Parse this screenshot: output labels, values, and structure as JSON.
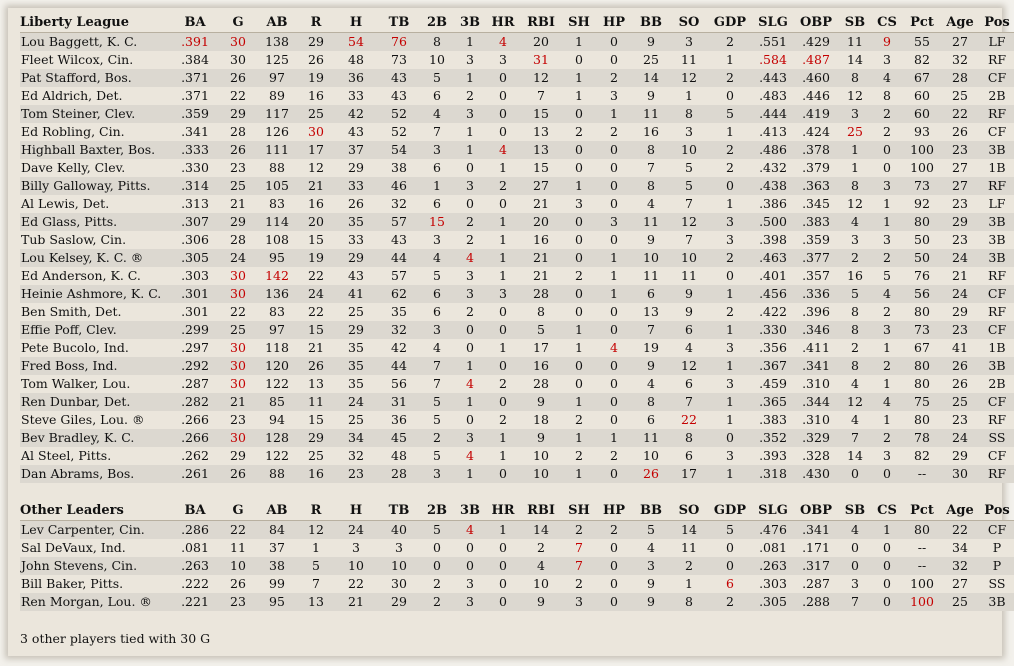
{
  "columns": [
    "BA",
    "G",
    "AB",
    "R",
    "H",
    "TB",
    "2B",
    "3B",
    "HR",
    "RBI",
    "SH",
    "HP",
    "BB",
    "SO",
    "GDP",
    "SLG",
    "OBP",
    "SB",
    "CS",
    "Pct",
    "Age",
    "Pos"
  ],
  "main": {
    "title": "Liberty League",
    "rows": [
      {
        "name": "Lou Baggett, K. C.",
        "stats": [
          ".391",
          "30",
          "138",
          "29",
          "54",
          "76",
          "8",
          "1",
          "4",
          "20",
          "1",
          "0",
          "9",
          "3",
          "2",
          ".551",
          ".429",
          "11",
          "9",
          "55",
          "27",
          "LF"
        ],
        "red": [
          0,
          1,
          4,
          5,
          8,
          18
        ]
      },
      {
        "name": "Fleet Wilcox, Cin.",
        "stats": [
          ".384",
          "30",
          "125",
          "26",
          "48",
          "73",
          "10",
          "3",
          "3",
          "31",
          "0",
          "0",
          "25",
          "11",
          "1",
          ".584",
          ".487",
          "14",
          "3",
          "82",
          "32",
          "RF"
        ],
        "red": [
          9,
          15,
          16
        ]
      },
      {
        "name": "Pat Stafford, Bos.",
        "stats": [
          ".371",
          "26",
          "97",
          "19",
          "36",
          "43",
          "5",
          "1",
          "0",
          "12",
          "1",
          "2",
          "14",
          "12",
          "2",
          ".443",
          ".460",
          "8",
          "4",
          "67",
          "28",
          "CF"
        ],
        "red": []
      },
      {
        "name": "Ed Aldrich, Det.",
        "stats": [
          ".371",
          "22",
          "89",
          "16",
          "33",
          "43",
          "6",
          "2",
          "0",
          "7",
          "1",
          "3",
          "9",
          "1",
          "0",
          ".483",
          ".446",
          "12",
          "8",
          "60",
          "25",
          "2B"
        ],
        "red": []
      },
      {
        "name": "Tom Steiner, Clev.",
        "stats": [
          ".359",
          "29",
          "117",
          "25",
          "42",
          "52",
          "4",
          "3",
          "0",
          "15",
          "0",
          "1",
          "11",
          "8",
          "5",
          ".444",
          ".419",
          "3",
          "2",
          "60",
          "22",
          "RF"
        ],
        "red": []
      },
      {
        "name": "Ed Robling, Cin.",
        "stats": [
          ".341",
          "28",
          "126",
          "30",
          "43",
          "52",
          "7",
          "1",
          "0",
          "13",
          "2",
          "2",
          "16",
          "3",
          "1",
          ".413",
          ".424",
          "25",
          "2",
          "93",
          "26",
          "CF"
        ],
        "red": [
          3,
          17
        ]
      },
      {
        "name": "Highball Baxter, Bos.",
        "stats": [
          ".333",
          "26",
          "111",
          "17",
          "37",
          "54",
          "3",
          "1",
          "4",
          "13",
          "0",
          "0",
          "8",
          "10",
          "2",
          ".486",
          ".378",
          "1",
          "0",
          "100",
          "23",
          "3B"
        ],
        "red": [
          8
        ]
      },
      {
        "name": "Dave Kelly, Clev.",
        "stats": [
          ".330",
          "23",
          "88",
          "12",
          "29",
          "38",
          "6",
          "0",
          "1",
          "15",
          "0",
          "0",
          "7",
          "5",
          "2",
          ".432",
          ".379",
          "1",
          "0",
          "100",
          "27",
          "1B"
        ],
        "red": []
      },
      {
        "name": "Billy Galloway, Pitts.",
        "stats": [
          ".314",
          "25",
          "105",
          "21",
          "33",
          "46",
          "1",
          "3",
          "2",
          "27",
          "1",
          "0",
          "8",
          "5",
          "0",
          ".438",
          ".363",
          "8",
          "3",
          "73",
          "27",
          "RF"
        ],
        "red": []
      },
      {
        "name": "Al Lewis, Det.",
        "stats": [
          ".313",
          "21",
          "83",
          "16",
          "26",
          "32",
          "6",
          "0",
          "0",
          "21",
          "3",
          "0",
          "4",
          "7",
          "1",
          ".386",
          ".345",
          "12",
          "1",
          "92",
          "23",
          "LF"
        ],
        "red": []
      },
      {
        "name": "Ed Glass, Pitts.",
        "stats": [
          ".307",
          "29",
          "114",
          "20",
          "35",
          "57",
          "15",
          "2",
          "1",
          "20",
          "0",
          "3",
          "11",
          "12",
          "3",
          ".500",
          ".383",
          "4",
          "1",
          "80",
          "29",
          "3B"
        ],
        "red": [
          6
        ]
      },
      {
        "name": "Tub Saslow, Cin.",
        "stats": [
          ".306",
          "28",
          "108",
          "15",
          "33",
          "43",
          "3",
          "2",
          "1",
          "16",
          "0",
          "0",
          "9",
          "7",
          "3",
          ".398",
          ".359",
          "3",
          "3",
          "50",
          "23",
          "3B"
        ],
        "red": []
      },
      {
        "name": "Lou Kelsey, K. C. ®",
        "stats": [
          ".305",
          "24",
          "95",
          "19",
          "29",
          "44",
          "4",
          "4",
          "1",
          "21",
          "0",
          "1",
          "10",
          "10",
          "2",
          ".463",
          ".377",
          "2",
          "2",
          "50",
          "24",
          "3B"
        ],
        "red": [
          7
        ]
      },
      {
        "name": "Ed Anderson, K. C.",
        "stats": [
          ".303",
          "30",
          "142",
          "22",
          "43",
          "57",
          "5",
          "3",
          "1",
          "21",
          "2",
          "1",
          "11",
          "11",
          "0",
          ".401",
          ".357",
          "16",
          "5",
          "76",
          "21",
          "RF"
        ],
        "red": [
          1,
          2
        ]
      },
      {
        "name": "Heinie Ashmore, K. C.",
        "stats": [
          ".301",
          "30",
          "136",
          "24",
          "41",
          "62",
          "6",
          "3",
          "3",
          "28",
          "0",
          "1",
          "6",
          "9",
          "1",
          ".456",
          ".336",
          "5",
          "4",
          "56",
          "24",
          "CF"
        ],
        "red": [
          1
        ]
      },
      {
        "name": "Ben Smith, Det.",
        "stats": [
          ".301",
          "22",
          "83",
          "22",
          "25",
          "35",
          "6",
          "2",
          "0",
          "8",
          "0",
          "0",
          "13",
          "9",
          "2",
          ".422",
          ".396",
          "8",
          "2",
          "80",
          "29",
          "RF"
        ],
        "red": []
      },
      {
        "name": "Effie Poff, Clev.",
        "stats": [
          ".299",
          "25",
          "97",
          "15",
          "29",
          "32",
          "3",
          "0",
          "0",
          "5",
          "1",
          "0",
          "7",
          "6",
          "1",
          ".330",
          ".346",
          "8",
          "3",
          "73",
          "23",
          "CF"
        ],
        "red": []
      },
      {
        "name": "Pete Bucolo, Ind.",
        "stats": [
          ".297",
          "30",
          "118",
          "21",
          "35",
          "42",
          "4",
          "0",
          "1",
          "17",
          "1",
          "4",
          "19",
          "4",
          "3",
          ".356",
          ".411",
          "2",
          "1",
          "67",
          "41",
          "1B"
        ],
        "red": [
          1,
          11
        ]
      },
      {
        "name": "Fred Boss, Ind.",
        "stats": [
          ".292",
          "30",
          "120",
          "26",
          "35",
          "44",
          "7",
          "1",
          "0",
          "16",
          "0",
          "0",
          "9",
          "12",
          "1",
          ".367",
          ".341",
          "8",
          "2",
          "80",
          "26",
          "3B"
        ],
        "red": [
          1
        ]
      },
      {
        "name": "Tom Walker, Lou.",
        "stats": [
          ".287",
          "30",
          "122",
          "13",
          "35",
          "56",
          "7",
          "4",
          "2",
          "28",
          "0",
          "0",
          "4",
          "6",
          "3",
          ".459",
          ".310",
          "4",
          "1",
          "80",
          "26",
          "2B"
        ],
        "red": [
          1,
          7
        ]
      },
      {
        "name": "Ren Dunbar, Det.",
        "stats": [
          ".282",
          "21",
          "85",
          "11",
          "24",
          "31",
          "5",
          "1",
          "0",
          "9",
          "1",
          "0",
          "8",
          "7",
          "1",
          ".365",
          ".344",
          "12",
          "4",
          "75",
          "25",
          "CF"
        ],
        "red": []
      },
      {
        "name": "Steve Giles, Lou. ®",
        "stats": [
          ".266",
          "23",
          "94",
          "15",
          "25",
          "36",
          "5",
          "0",
          "2",
          "18",
          "2",
          "0",
          "6",
          "22",
          "1",
          ".383",
          ".310",
          "4",
          "1",
          "80",
          "23",
          "RF"
        ],
        "red": [
          13
        ]
      },
      {
        "name": "Bev Bradley, K. C.",
        "stats": [
          ".266",
          "30",
          "128",
          "29",
          "34",
          "45",
          "2",
          "3",
          "1",
          "9",
          "1",
          "1",
          "11",
          "8",
          "0",
          ".352",
          ".329",
          "7",
          "2",
          "78",
          "24",
          "SS"
        ],
        "red": [
          1
        ]
      },
      {
        "name": "Al Steel, Pitts.",
        "stats": [
          ".262",
          "29",
          "122",
          "25",
          "32",
          "48",
          "5",
          "4",
          "1",
          "10",
          "2",
          "2",
          "10",
          "6",
          "3",
          ".393",
          ".328",
          "14",
          "3",
          "82",
          "29",
          "CF"
        ],
        "red": [
          7
        ]
      },
      {
        "name": "Dan Abrams, Bos.",
        "stats": [
          ".261",
          "26",
          "88",
          "16",
          "23",
          "28",
          "3",
          "1",
          "0",
          "10",
          "1",
          "0",
          "26",
          "17",
          "1",
          ".318",
          ".430",
          "0",
          "0",
          "--",
          "30",
          "RF"
        ],
        "red": [
          12
        ]
      }
    ]
  },
  "other": {
    "title": "Other Leaders",
    "rows": [
      {
        "name": "Lev Carpenter, Cin.",
        "stats": [
          ".286",
          "22",
          "84",
          "12",
          "24",
          "40",
          "5",
          "4",
          "1",
          "14",
          "2",
          "2",
          "5",
          "14",
          "5",
          ".476",
          ".341",
          "4",
          "1",
          "80",
          "22",
          "CF"
        ],
        "red": [
          7
        ]
      },
      {
        "name": "Sal DeVaux, Ind.",
        "stats": [
          ".081",
          "11",
          "37",
          "1",
          "3",
          "3",
          "0",
          "0",
          "0",
          "2",
          "7",
          "0",
          "4",
          "11",
          "0",
          ".081",
          ".171",
          "0",
          "0",
          "--",
          "34",
          "P"
        ],
        "red": [
          10
        ]
      },
      {
        "name": "John Stevens, Cin.",
        "stats": [
          ".263",
          "10",
          "38",
          "5",
          "10",
          "10",
          "0",
          "0",
          "0",
          "4",
          "7",
          "0",
          "3",
          "2",
          "0",
          ".263",
          ".317",
          "0",
          "0",
          "--",
          "32",
          "P"
        ],
        "red": [
          10
        ]
      },
      {
        "name": "Bill Baker, Pitts.",
        "stats": [
          ".222",
          "26",
          "99",
          "7",
          "22",
          "30",
          "2",
          "3",
          "0",
          "10",
          "2",
          "0",
          "9",
          "1",
          "6",
          ".303",
          ".287",
          "3",
          "0",
          "100",
          "27",
          "SS"
        ],
        "red": [
          14
        ]
      },
      {
        "name": "Ren Morgan, Lou. ®",
        "stats": [
          ".221",
          "23",
          "95",
          "13",
          "21",
          "29",
          "2",
          "3",
          "0",
          "9",
          "3",
          "0",
          "9",
          "8",
          "2",
          ".305",
          ".288",
          "7",
          "0",
          "100",
          "25",
          "3B"
        ],
        "red": [
          19
        ]
      }
    ]
  },
  "footnote": "3 other players tied with 30 G"
}
